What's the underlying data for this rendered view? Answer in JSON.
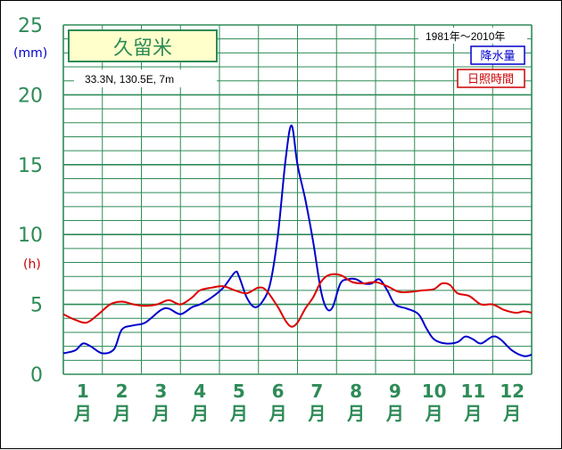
{
  "chart_data": {
    "type": "line",
    "station": "久留米",
    "coordinates": "33.3N,  130.5E,  7m",
    "period": "1981年～2010年",
    "y_unit_left": "(mm)",
    "y_unit_right": "(h)",
    "yticks": [
      "0",
      "5",
      "10",
      "15",
      "20",
      "25"
    ],
    "ylim": [
      0,
      25
    ],
    "x_months": [
      "1",
      "2",
      "3",
      "4",
      "5",
      "6",
      "7",
      "8",
      "9",
      "10",
      "11",
      "12"
    ],
    "month_suffix": "月",
    "x_range": [
      0.5,
      12.5
    ],
    "grid": true,
    "legend": [
      {
        "label": "降水量",
        "color": "#0000cc"
      },
      {
        "label": "日照時間",
        "color": "#dd0000"
      }
    ],
    "series": [
      {
        "name": "降水量",
        "color": "#0000cc",
        "points": [
          [
            0.5,
            1.5
          ],
          [
            0.8,
            1.7
          ],
          [
            1.0,
            2.2
          ],
          [
            1.2,
            2.0
          ],
          [
            1.5,
            1.5
          ],
          [
            1.8,
            1.8
          ],
          [
            2.0,
            3.2
          ],
          [
            2.3,
            3.5
          ],
          [
            2.6,
            3.7
          ],
          [
            3.0,
            4.6
          ],
          [
            3.2,
            4.7
          ],
          [
            3.5,
            4.3
          ],
          [
            3.8,
            4.8
          ],
          [
            4.0,
            5.0
          ],
          [
            4.3,
            5.5
          ],
          [
            4.6,
            6.2
          ],
          [
            4.9,
            7.3
          ],
          [
            5.0,
            7.0
          ],
          [
            5.2,
            5.5
          ],
          [
            5.4,
            4.8
          ],
          [
            5.6,
            5.2
          ],
          [
            5.8,
            6.5
          ],
          [
            6.0,
            10.0
          ],
          [
            6.2,
            15.5
          ],
          [
            6.35,
            17.8
          ],
          [
            6.5,
            15.0
          ],
          [
            6.7,
            12.5
          ],
          [
            6.9,
            9.5
          ],
          [
            7.1,
            6.0
          ],
          [
            7.25,
            4.7
          ],
          [
            7.4,
            4.8
          ],
          [
            7.6,
            6.5
          ],
          [
            7.8,
            6.8
          ],
          [
            8.0,
            6.8
          ],
          [
            8.2,
            6.5
          ],
          [
            8.4,
            6.5
          ],
          [
            8.6,
            6.8
          ],
          [
            8.8,
            6.0
          ],
          [
            9.0,
            5.0
          ],
          [
            9.3,
            4.7
          ],
          [
            9.6,
            4.3
          ],
          [
            9.8,
            3.3
          ],
          [
            10.0,
            2.5
          ],
          [
            10.3,
            2.2
          ],
          [
            10.6,
            2.3
          ],
          [
            10.8,
            2.7
          ],
          [
            11.0,
            2.5
          ],
          [
            11.2,
            2.2
          ],
          [
            11.5,
            2.7
          ],
          [
            11.7,
            2.5
          ],
          [
            12.0,
            1.7
          ],
          [
            12.3,
            1.3
          ],
          [
            12.5,
            1.4
          ]
        ]
      },
      {
        "name": "日照時間",
        "color": "#dd0000",
        "points": [
          [
            0.5,
            4.3
          ],
          [
            0.8,
            3.9
          ],
          [
            1.1,
            3.7
          ],
          [
            1.4,
            4.3
          ],
          [
            1.7,
            5.0
          ],
          [
            2.0,
            5.2
          ],
          [
            2.3,
            5.0
          ],
          [
            2.6,
            4.9
          ],
          [
            2.9,
            5.0
          ],
          [
            3.2,
            5.3
          ],
          [
            3.5,
            5.0
          ],
          [
            3.8,
            5.5
          ],
          [
            4.0,
            6.0
          ],
          [
            4.3,
            6.2
          ],
          [
            4.6,
            6.3
          ],
          [
            4.9,
            6.0
          ],
          [
            5.2,
            5.8
          ],
          [
            5.5,
            6.2
          ],
          [
            5.7,
            6.0
          ],
          [
            6.0,
            4.8
          ],
          [
            6.2,
            3.8
          ],
          [
            6.35,
            3.4
          ],
          [
            6.5,
            3.7
          ],
          [
            6.7,
            4.7
          ],
          [
            6.9,
            5.5
          ],
          [
            7.1,
            6.6
          ],
          [
            7.3,
            7.1
          ],
          [
            7.6,
            7.1
          ],
          [
            7.9,
            6.6
          ],
          [
            8.2,
            6.5
          ],
          [
            8.5,
            6.6
          ],
          [
            8.8,
            6.3
          ],
          [
            9.1,
            5.9
          ],
          [
            9.4,
            5.9
          ],
          [
            9.7,
            6.0
          ],
          [
            10.0,
            6.1
          ],
          [
            10.2,
            6.5
          ],
          [
            10.4,
            6.4
          ],
          [
            10.6,
            5.8
          ],
          [
            10.9,
            5.6
          ],
          [
            11.2,
            5.0
          ],
          [
            11.5,
            5.0
          ],
          [
            11.8,
            4.6
          ],
          [
            12.1,
            4.4
          ],
          [
            12.3,
            4.5
          ],
          [
            12.5,
            4.4
          ]
        ]
      }
    ]
  }
}
